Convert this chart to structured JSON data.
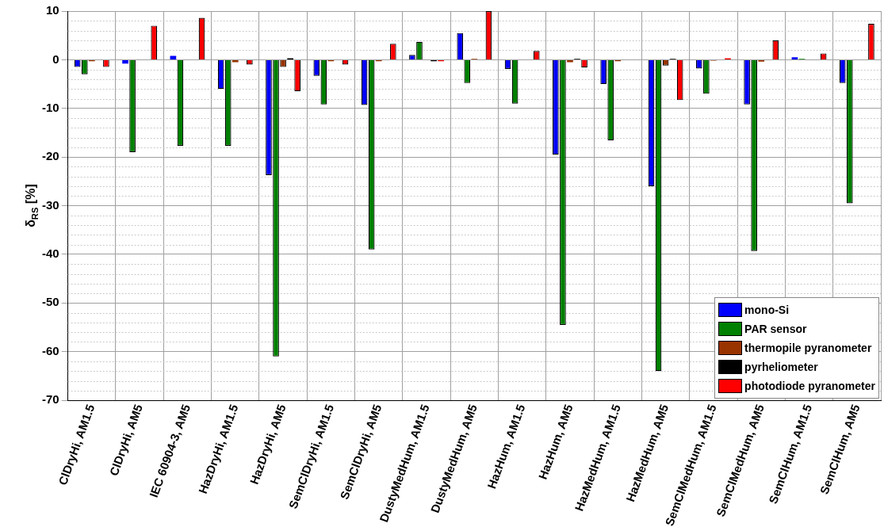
{
  "chart_data": {
    "type": "bar",
    "ylabel": "δ$_{RS}$ [%]",
    "categories": [
      "ClDryHi, AM1.5",
      "ClDryHi, AM5",
      "IEC 60904-3, AM5",
      "HazDryHi, AM1.5",
      "HazDryHi, AM5",
      "SemClDryHi, AM1.5",
      "SemClDryHi, AM5",
      "DustyMedHum, AM1.5",
      "DustyMedHum, AM5",
      "HazHum, AM1.5",
      "HazHum, AM5",
      "HazMedHum, AM1.5",
      "HazMedHum, AM5",
      "SemClMedHum, AM1.5",
      "SemClMedHum, AM5",
      "SemClHum, AM1.5",
      "SemClHum, AM5"
    ],
    "series": [
      {
        "name": "mono-Si",
        "color": "#0000ff",
        "values": [
          -1.5,
          -0.8,
          0.8,
          -6,
          -23.7,
          -3.3,
          -9.3,
          1,
          5.5,
          -1.9,
          -19.5,
          -5,
          -26,
          -1.8,
          -9.2,
          0.5,
          -4.8
        ]
      },
      {
        "name": "PAR sensor",
        "color": "#008000",
        "values": [
          -3,
          -19,
          -17.7,
          -17.7,
          -61,
          -9.2,
          -39,
          3.7,
          -4.8,
          -9,
          -54.5,
          -16.6,
          -64,
          -7,
          -39.3,
          0.2,
          -29.5
        ]
      },
      {
        "name": "thermopile pyranometer",
        "color": "#993300",
        "values": [
          -0.3,
          0,
          0,
          -0.5,
          -1.5,
          -0.3,
          -0.3,
          0,
          0.2,
          0,
          -0.5,
          -0.3,
          -1.2,
          -0.2,
          -0.4,
          0,
          0
        ]
      },
      {
        "name": "pyrheliometer",
        "color": "#000000",
        "values": [
          0,
          0,
          0,
          0,
          0.3,
          0,
          0,
          -0.3,
          0,
          0,
          0.2,
          0,
          0.2,
          0,
          0,
          0,
          0
        ]
      },
      {
        "name": "photodiode pyranometer",
        "color": "#ff0000",
        "values": [
          -1.5,
          7,
          8.6,
          -1,
          -6.5,
          -1,
          3.3,
          -0.3,
          10,
          1.8,
          -1.6,
          0,
          -8.3,
          0.3,
          4,
          1.3,
          7.4
        ]
      }
    ],
    "ylim": [
      -70,
      10
    ],
    "yticks": [
      -70,
      -60,
      -50,
      -40,
      -30,
      -20,
      -10,
      0,
      10
    ],
    "grid": true,
    "legend": "bottom right"
  }
}
